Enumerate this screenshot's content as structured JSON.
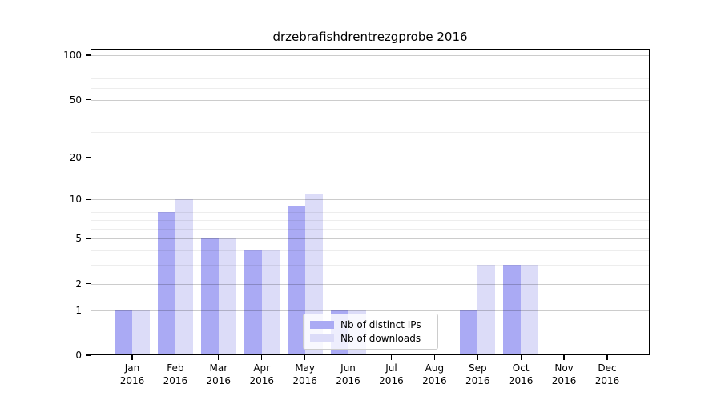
{
  "title": "drzebrafishdrentrezgprobe 2016",
  "chart_data": {
    "type": "bar",
    "title": "drzebrafishdrentrezgprobe 2016",
    "categories": [
      "Jan",
      "Feb",
      "Mar",
      "Apr",
      "May",
      "Jun",
      "Jul",
      "Aug",
      "Sep",
      "Oct",
      "Nov",
      "Dec"
    ],
    "category_year": "2016",
    "series": [
      {
        "name": "Nb of distinct IPs",
        "key": "distinct-ips",
        "color": "#aaaaf4",
        "values": [
          1,
          8,
          5,
          4,
          9,
          1,
          0,
          0,
          1,
          3,
          0,
          0
        ]
      },
      {
        "name": "Nb of downloads",
        "key": "downloads",
        "color": "#dcdcf8",
        "values": [
          1,
          10,
          5,
          4,
          11,
          1,
          0,
          0,
          3,
          3,
          0,
          0
        ]
      }
    ],
    "xlabel": "",
    "ylabel": "",
    "y_axis": {
      "scale": "log1p",
      "tick_values": [
        0,
        1,
        2,
        5,
        10,
        20,
        50,
        100
      ],
      "tick_labels": [
        "0",
        "1",
        "2",
        "5",
        "10",
        "20",
        "50",
        "100"
      ],
      "minor_gridline_values": [
        3,
        4,
        6,
        7,
        8,
        9,
        30,
        40,
        60,
        70,
        80,
        90
      ],
      "ylim": [
        0,
        109
      ]
    },
    "grid": "on",
    "legend": {
      "position": "inside lower center",
      "entries": [
        "Nb of distinct IPs",
        "Nb of downloads"
      ]
    }
  },
  "colors": {
    "distinct_ips": "#aaaaf4",
    "downloads": "#dcdcf8",
    "grid_major": "#cccccc",
    "grid_minor": "#ededed",
    "spine": "#000000",
    "background": "#ffffff",
    "text": "#000000"
  }
}
